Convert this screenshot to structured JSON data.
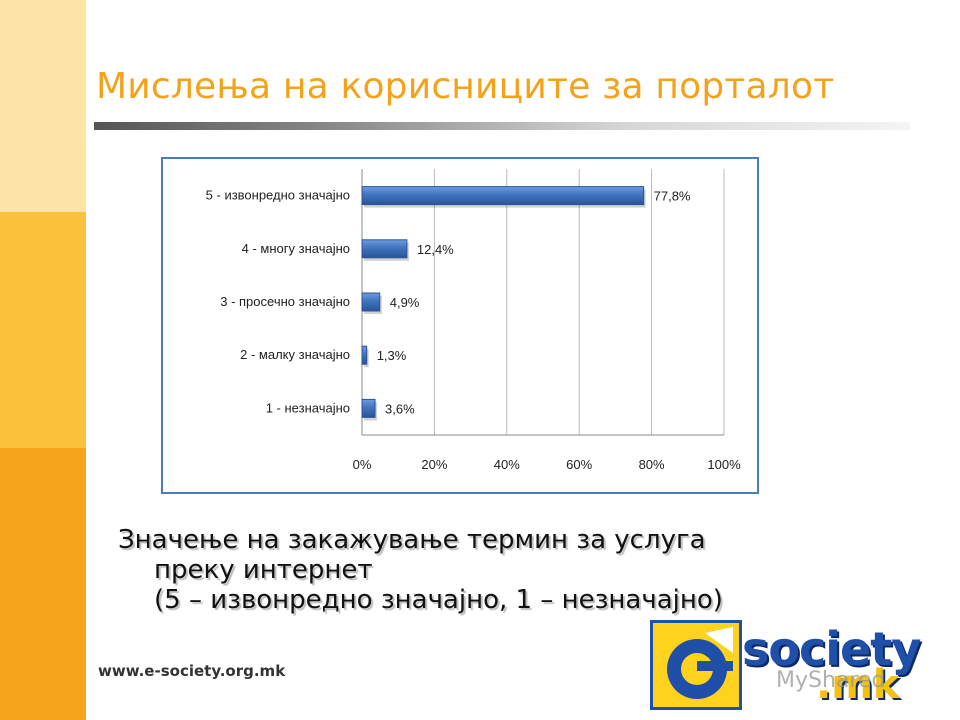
{
  "slide": {
    "title": "Мислења на корисниците за порталот",
    "caption_line1": "Значење на закажување термин за услуга",
    "caption_line2": "преку интернет",
    "caption_line3": "(5 – извонредно значајно, 1 – незначајно)",
    "url": "www.e-society.org.mk"
  },
  "logo": {
    "word": "society",
    "tld": ".mk",
    "watermark": "MyShared"
  },
  "colors": {
    "accent": "#f5a21b",
    "bar": "#3f74bf",
    "frame": "#4a7ebb"
  },
  "chart_data": {
    "type": "bar",
    "orientation": "horizontal",
    "categories": [
      "5 - извонредно значајно",
      "4 - многу значајно",
      "3 - просечно значајно",
      "2 - малку значајно",
      "1 - незначајно"
    ],
    "values": [
      77.8,
      12.4,
      4.9,
      1.3,
      3.6
    ],
    "value_labels": [
      "77,8%",
      "12,4%",
      "4,9%",
      "1,3%",
      "3,6%"
    ],
    "xlim": [
      0,
      100
    ],
    "x_ticks": [
      "0%",
      "20%",
      "40%",
      "60%",
      "80%",
      "100%"
    ],
    "grid": true,
    "legend": "none"
  }
}
